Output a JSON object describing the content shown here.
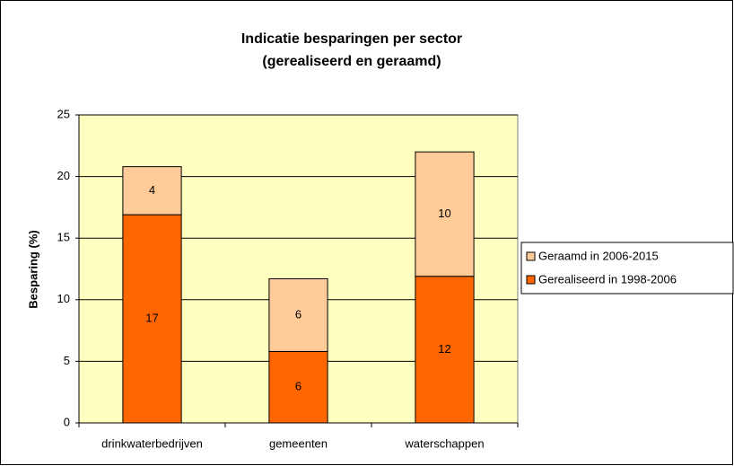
{
  "chart_data": {
    "type": "stacked_bar",
    "title": [
      "Indicatie besparingen per sector",
      "(gerealiseerd en geraamd)"
    ],
    "ylabel": "Besparing (%)",
    "categories": [
      "drinkwaterbedrijven",
      "gemeenten",
      "waterschappen"
    ],
    "series": [
      {
        "name": "Gerealiseerd in 1998-2006",
        "color": "#ff6600",
        "values": [
          16.9,
          5.8,
          11.9
        ],
        "value_labels": [
          "17",
          "6",
          "12"
        ]
      },
      {
        "name": "Geraamd in 2006-2015",
        "color": "#ffcc99",
        "values": [
          3.9,
          5.9,
          10.1
        ],
        "value_labels": [
          "4",
          "6",
          "10"
        ]
      }
    ],
    "ylim": [
      0,
      25
    ],
    "yticks": [
      0,
      5,
      10,
      15,
      20,
      25
    ],
    "grid": true,
    "plot_background": "#ffffc0",
    "legend": "right"
  }
}
